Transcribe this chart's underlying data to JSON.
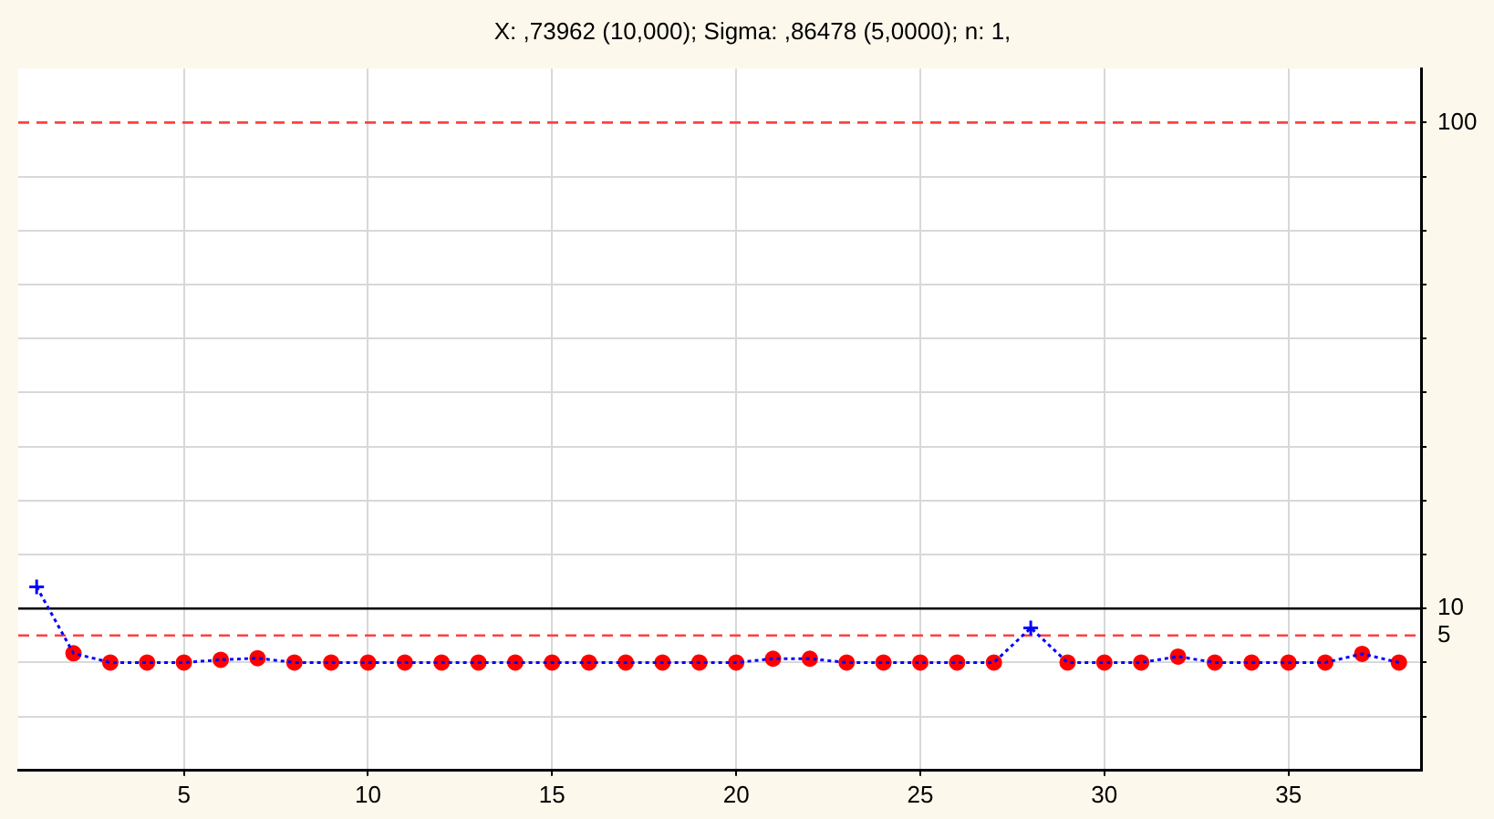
{
  "chart_data": {
    "type": "line",
    "title": "X: ,73962 (10,000); Sigma: ,86478 (5,0000); n: 1,",
    "x": [
      1,
      2,
      3,
      4,
      5,
      6,
      7,
      8,
      9,
      10,
      11,
      12,
      13,
      14,
      15,
      16,
      17,
      18,
      19,
      20,
      21,
      22,
      23,
      24,
      25,
      26,
      27,
      28,
      29,
      30,
      31,
      32,
      33,
      34,
      35,
      36,
      37,
      38
    ],
    "series": [
      {
        "type": "line",
        "color": "#0000ff",
        "marker": "none",
        "line_style": "dotted",
        "values": [
          14,
          1.7,
          0,
          0,
          0,
          0.5,
          0.8,
          0,
          0,
          0,
          0,
          0,
          0,
          0,
          0,
          0,
          0,
          0,
          0,
          0,
          0.7,
          0.7,
          0,
          0,
          0,
          0,
          0,
          6.4,
          0,
          0,
          0,
          1.1,
          0,
          0,
          0,
          0,
          1.6,
          0
        ]
      },
      {
        "type": "scatter",
        "color": "#ff0000",
        "marker": "circle",
        "values": [
          null,
          1.7,
          0,
          0,
          0,
          0.5,
          0.8,
          0,
          0,
          0,
          0,
          0,
          0,
          0,
          0,
          0,
          0,
          0,
          0,
          0,
          0.7,
          0.7,
          0,
          0,
          0,
          0,
          0,
          null,
          0,
          0,
          0,
          1.1,
          0,
          0,
          0,
          0,
          1.6,
          0
        ]
      },
      {
        "type": "scatter",
        "color": "#0000ff",
        "marker": "cross",
        "values": [
          14,
          null,
          null,
          null,
          null,
          null,
          null,
          null,
          null,
          null,
          null,
          null,
          null,
          null,
          null,
          null,
          null,
          null,
          null,
          null,
          null,
          null,
          null,
          null,
          null,
          null,
          null,
          6.4,
          null,
          null,
          null,
          null,
          null,
          null,
          null,
          null,
          null,
          null
        ]
      }
    ],
    "xlim": [
      0.5,
      38.6
    ],
    "xticks": [
      5,
      10,
      15,
      20,
      25,
      30,
      35
    ],
    "ylim": [
      -20,
      110
    ],
    "yticks": [
      {
        "value": -10,
        "label": null
      },
      {
        "value": 0,
        "label": null
      },
      {
        "value": 10,
        "label": "10"
      },
      {
        "value": 20,
        "label": null
      },
      {
        "value": 30,
        "label": null
      },
      {
        "value": 40,
        "label": null
      },
      {
        "value": 50,
        "label": null
      },
      {
        "value": 60,
        "label": null
      },
      {
        "value": 70,
        "label": null
      },
      {
        "value": 80,
        "label": null
      },
      {
        "value": 90,
        "label": null
      },
      {
        "value": 100,
        "label": "100"
      }
    ],
    "ref_lines": [
      {
        "axis": "y",
        "value": 100,
        "color": "#ff4040",
        "line_style": "dashed"
      },
      {
        "axis": "y",
        "value": 10,
        "color": "#000000",
        "line_style": "solid"
      },
      {
        "axis": "y",
        "value": 5,
        "label": "5",
        "color": "#ff4040",
        "line_style": "dashed"
      }
    ],
    "grid": true,
    "legend": false
  }
}
